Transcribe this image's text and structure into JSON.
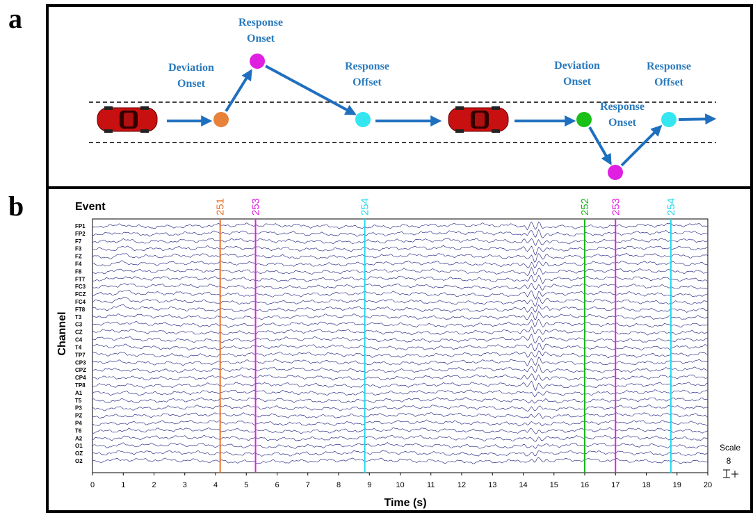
{
  "panel_a": {
    "label": "a",
    "steps": [
      "Deviation Onset",
      "Response Onset",
      "Response Offset",
      "Deviation Onset",
      "Response Onset",
      "Response Offset"
    ]
  },
  "panel_b": {
    "label": "b",
    "event_title": "Event",
    "events": [
      {
        "code": "251",
        "time": 4.15,
        "color": "#e8732c"
      },
      {
        "code": "253",
        "time": 5.3,
        "color": "#e020e0"
      },
      {
        "code": "254",
        "time": 8.85,
        "color": "#22d8ee"
      },
      {
        "code": "252",
        "time": 16,
        "color": "#18b818"
      },
      {
        "code": "253",
        "time": 17,
        "color": "#e020e0"
      },
      {
        "code": "254",
        "time": 18.8,
        "color": "#22d8ee"
      }
    ],
    "channels": [
      "FP1",
      "FP2",
      "F7",
      "F3",
      "FZ",
      "F4",
      "F8",
      "FT7",
      "FC3",
      "FCZ",
      "FC4",
      "FT8",
      "T3",
      "C3",
      "CZ",
      "C4",
      "T4",
      "TP7",
      "CP3",
      "CPZ",
      "CP4",
      "TP8",
      "A1",
      "T5",
      "P3",
      "PZ",
      "P4",
      "T6",
      "A2",
      "O1",
      "OZ",
      "O2"
    ],
    "y_label": "Channel",
    "x_label": "Time (s)",
    "xlim": [
      0,
      20
    ],
    "xticks": [
      0,
      1,
      2,
      3,
      4,
      5,
      6,
      7,
      8,
      9,
      10,
      11,
      12,
      13,
      14,
      15,
      16,
      17,
      18,
      19,
      20
    ],
    "scale_label": "Scale",
    "scale_value": 8,
    "trace_color": "#34348c"
  }
}
